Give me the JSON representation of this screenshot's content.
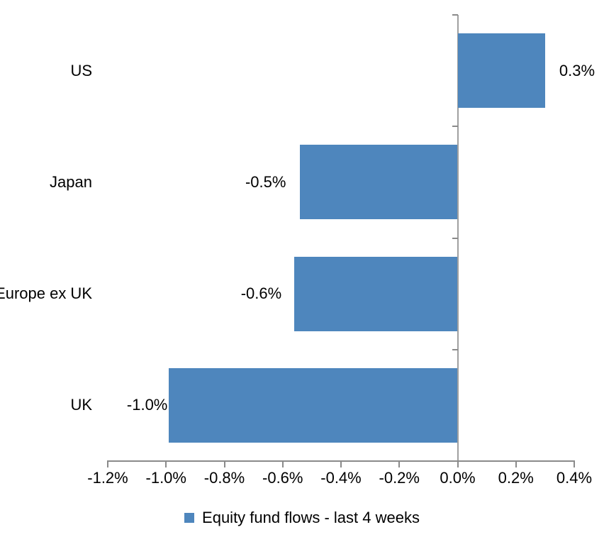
{
  "chart_data": {
    "type": "bar",
    "orientation": "horizontal",
    "title": "",
    "xlabel": "",
    "ylabel": "",
    "grid": false,
    "legend_position": "bottom",
    "categories": [
      "US",
      "Japan",
      "Europe ex UK",
      "UK"
    ],
    "series": [
      {
        "name": "Equity fund flows - last 4 weeks",
        "values": [
          0.3,
          -0.5,
          -0.6,
          -1.0
        ],
        "values_precise_pct": [
          0.3,
          -0.54,
          -0.56,
          -0.99
        ],
        "data_labels": [
          "0.3%",
          "-0.5%",
          "-0.6%",
          "-1.0%"
        ],
        "color": "#4E86BD"
      }
    ],
    "x_axis": {
      "tick_labels": [
        "-1.2%",
        "-1.0%",
        "-0.8%",
        "-0.6%",
        "-0.4%",
        "-0.2%",
        "0.0%",
        "0.2%",
        "0.4%"
      ],
      "tick_values": [
        -1.2,
        -1.0,
        -0.8,
        -0.6,
        -0.4,
        -0.2,
        0.0,
        0.2,
        0.4
      ],
      "range": [
        -1.2,
        0.4
      ],
      "unit": "%"
    }
  },
  "legend": {
    "label": "Equity fund flows - last 4 weeks",
    "marker_color": "#4E86BD"
  },
  "colors": {
    "bar": "#4E86BD",
    "axis": "#8A8A8A",
    "zero_line": "#A0A0A0",
    "text": "#000000",
    "background": "#FFFFFF"
  }
}
